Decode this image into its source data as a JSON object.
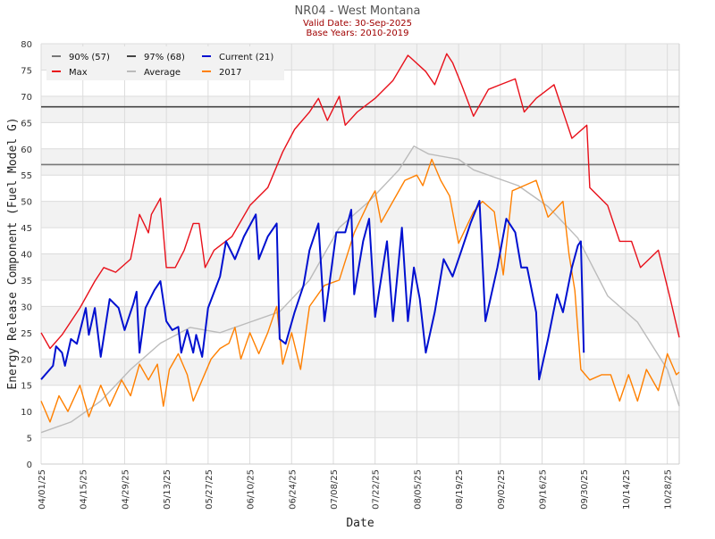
{
  "chart_data": {
    "type": "line",
    "title": "NR04 - West Montana",
    "subtitle_lines": [
      "Valid Date: 30-Sep-2025",
      "Base Years: 2010-2019"
    ],
    "xlabel": "Date",
    "ylabel": "Energy Release Component (Fuel Model G)",
    "x_unit": "days since 04/01/25",
    "xlim": [
      0,
      214
    ],
    "ylim": [
      0,
      80
    ],
    "yticks": [
      0,
      5,
      10,
      15,
      20,
      25,
      30,
      35,
      40,
      45,
      50,
      55,
      60,
      65,
      70,
      75,
      80
    ],
    "xticks": [
      {
        "day": 0,
        "label": "04/01/25"
      },
      {
        "day": 14,
        "label": "04/15/25"
      },
      {
        "day": 28,
        "label": "04/29/25"
      },
      {
        "day": 42,
        "label": "05/13/25"
      },
      {
        "day": 56,
        "label": "05/27/25"
      },
      {
        "day": 70,
        "label": "06/10/25"
      },
      {
        "day": 84,
        "label": "06/24/25"
      },
      {
        "day": 98,
        "label": "07/08/25"
      },
      {
        "day": 112,
        "label": "07/22/25"
      },
      {
        "day": 126,
        "label": "08/05/25"
      },
      {
        "day": 140,
        "label": "08/19/25"
      },
      {
        "day": 154,
        "label": "09/02/25"
      },
      {
        "day": 168,
        "label": "09/16/25"
      },
      {
        "day": 182,
        "label": "09/30/25"
      },
      {
        "day": 196,
        "label": "10/14/25"
      },
      {
        "day": 210,
        "label": "10/28/25"
      }
    ],
    "grid": true,
    "legend_position": "top-left",
    "reference_lines": [
      {
        "name": "90% (57)",
        "value": 57,
        "color": "#777777"
      },
      {
        "name": "97% (68)",
        "value": 68,
        "color": "#444444"
      }
    ],
    "series": [
      {
        "name": "Max",
        "color": "#e8101a",
        "points": [
          [
            0,
            25
          ],
          [
            3,
            22
          ],
          [
            7,
            24.6
          ],
          [
            13,
            29.7
          ],
          [
            18,
            34.8
          ],
          [
            21,
            37.4
          ],
          [
            25,
            36.5
          ],
          [
            30,
            39
          ],
          [
            33,
            47.5
          ],
          [
            36,
            44
          ],
          [
            37,
            47.5
          ],
          [
            40,
            50.6
          ],
          [
            42,
            37.4
          ],
          [
            45,
            37.4
          ],
          [
            48,
            40.7
          ],
          [
            51,
            45.8
          ],
          [
            53,
            45.8
          ],
          [
            55,
            37.4
          ],
          [
            58,
            40.7
          ],
          [
            64,
            43.3
          ],
          [
            70,
            49.2
          ],
          [
            76,
            52.6
          ],
          [
            81,
            59.4
          ],
          [
            85,
            63.7
          ],
          [
            90,
            67
          ],
          [
            93,
            69.6
          ],
          [
            96,
            65.4
          ],
          [
            100,
            70
          ],
          [
            102,
            64.5
          ],
          [
            106,
            67
          ],
          [
            112,
            69.6
          ],
          [
            118,
            73
          ],
          [
            123,
            77.8
          ],
          [
            124,
            77.3
          ],
          [
            129,
            74.7
          ],
          [
            132,
            72.2
          ],
          [
            136,
            78.1
          ],
          [
            138,
            76.4
          ],
          [
            141,
            72.2
          ],
          [
            145,
            66.2
          ],
          [
            150,
            71.3
          ],
          [
            154,
            72.2
          ],
          [
            159,
            73.3
          ],
          [
            162,
            67
          ],
          [
            166,
            69.6
          ],
          [
            172,
            72.2
          ],
          [
            178,
            62
          ],
          [
            183,
            64.5
          ],
          [
            184,
            52.6
          ],
          [
            190,
            49.2
          ],
          [
            194,
            42.4
          ],
          [
            198,
            42.4
          ],
          [
            201,
            37.4
          ],
          [
            207,
            40.7
          ],
          [
            211,
            31.4
          ],
          [
            214,
            24.1
          ]
        ]
      },
      {
        "name": "Average",
        "color": "#bbbbbb",
        "points": [
          [
            0,
            6
          ],
          [
            10,
            8
          ],
          [
            20,
            12
          ],
          [
            30,
            18
          ],
          [
            40,
            23
          ],
          [
            50,
            26
          ],
          [
            60,
            25
          ],
          [
            70,
            27
          ],
          [
            80,
            29
          ],
          [
            90,
            35
          ],
          [
            100,
            45
          ],
          [
            110,
            50
          ],
          [
            120,
            56
          ],
          [
            125,
            60.5
          ],
          [
            130,
            59
          ],
          [
            140,
            58
          ],
          [
            145,
            56
          ],
          [
            160,
            53
          ],
          [
            170,
            49
          ],
          [
            180,
            43
          ],
          [
            190,
            32
          ],
          [
            200,
            27
          ],
          [
            210,
            18
          ],
          [
            214,
            11
          ]
        ]
      },
      {
        "name": "2017",
        "color": "#ff8000",
        "points": [
          [
            0,
            12
          ],
          [
            3,
            8
          ],
          [
            6,
            13
          ],
          [
            9,
            10
          ],
          [
            13,
            15
          ],
          [
            16,
            9
          ],
          [
            20,
            15
          ],
          [
            23,
            11
          ],
          [
            27,
            16
          ],
          [
            30,
            13
          ],
          [
            33,
            19
          ],
          [
            36,
            16
          ],
          [
            39,
            19
          ],
          [
            41,
            11
          ],
          [
            43,
            18
          ],
          [
            46,
            21
          ],
          [
            49,
            17
          ],
          [
            51,
            12
          ],
          [
            54,
            16
          ],
          [
            57,
            20
          ],
          [
            60,
            22
          ],
          [
            63,
            23
          ],
          [
            65,
            26
          ],
          [
            67,
            20
          ],
          [
            70,
            25
          ],
          [
            73,
            21
          ],
          [
            76,
            25
          ],
          [
            79,
            30
          ],
          [
            81,
            19
          ],
          [
            84,
            25
          ],
          [
            87,
            18
          ],
          [
            90,
            30
          ],
          [
            95,
            34
          ],
          [
            100,
            35
          ],
          [
            105,
            44
          ],
          [
            110,
            50
          ],
          [
            112,
            52
          ],
          [
            114,
            46
          ],
          [
            118,
            50
          ],
          [
            122,
            54
          ],
          [
            126,
            55
          ],
          [
            128,
            53
          ],
          [
            131,
            58
          ],
          [
            134,
            54
          ],
          [
            137,
            51
          ],
          [
            140,
            42
          ],
          [
            145,
            48
          ],
          [
            148,
            50
          ],
          [
            152,
            48
          ],
          [
            155,
            36
          ],
          [
            158,
            52
          ],
          [
            162,
            53
          ],
          [
            166,
            54
          ],
          [
            170,
            47
          ],
          [
            175,
            50
          ],
          [
            177,
            40
          ],
          [
            179,
            33
          ],
          [
            181,
            18
          ],
          [
            184,
            16
          ],
          [
            188,
            17
          ],
          [
            191,
            17
          ],
          [
            194,
            12
          ],
          [
            197,
            17
          ],
          [
            200,
            12
          ],
          [
            203,
            18
          ],
          [
            207,
            14
          ],
          [
            210,
            21
          ],
          [
            213,
            17
          ],
          [
            214,
            17.5
          ]
        ]
      },
      {
        "name": "Current (21)",
        "color": "#0010d0",
        "points": [
          [
            0,
            16.1
          ],
          [
            4,
            18.7
          ],
          [
            5,
            22.4
          ],
          [
            7,
            21.2
          ],
          [
            8,
            18.7
          ],
          [
            10,
            23.8
          ],
          [
            12,
            22.9
          ],
          [
            15,
            29.7
          ],
          [
            16,
            24.6
          ],
          [
            18,
            29.7
          ],
          [
            20,
            20.4
          ],
          [
            23,
            31.4
          ],
          [
            26,
            29.7
          ],
          [
            28,
            25.5
          ],
          [
            31,
            30.6
          ],
          [
            32,
            32.8
          ],
          [
            33,
            21.2
          ],
          [
            35,
            29.7
          ],
          [
            38,
            33.1
          ],
          [
            40,
            34.8
          ],
          [
            42,
            27.2
          ],
          [
            44,
            25.5
          ],
          [
            46,
            26.1
          ],
          [
            47,
            21.2
          ],
          [
            49,
            25.5
          ],
          [
            51,
            21.2
          ],
          [
            52,
            24.6
          ],
          [
            54,
            20.4
          ],
          [
            56,
            29.7
          ],
          [
            60,
            35.7
          ],
          [
            62,
            42.4
          ],
          [
            65,
            39
          ],
          [
            68,
            43.3
          ],
          [
            72,
            47.5
          ],
          [
            73,
            39
          ],
          [
            76,
            43.3
          ],
          [
            79,
            45.8
          ],
          [
            80,
            23.8
          ],
          [
            82,
            22.9
          ],
          [
            85,
            28.9
          ],
          [
            88,
            34
          ],
          [
            90,
            40.7
          ],
          [
            93,
            45.8
          ],
          [
            95,
            27.2
          ],
          [
            99,
            44.1
          ],
          [
            102,
            44.1
          ],
          [
            104,
            48.4
          ],
          [
            105,
            32.3
          ],
          [
            108,
            42.4
          ],
          [
            110,
            46.7
          ],
          [
            112,
            28
          ],
          [
            116,
            42.4
          ],
          [
            118,
            27.2
          ],
          [
            121,
            45
          ],
          [
            123,
            27.2
          ],
          [
            125,
            37.4
          ],
          [
            127,
            31.4
          ],
          [
            129,
            21.2
          ],
          [
            132,
            28.9
          ],
          [
            135,
            39
          ],
          [
            138,
            35.7
          ],
          [
            141,
            40.7
          ],
          [
            144,
            45.8
          ],
          [
            147,
            50.1
          ],
          [
            149,
            27.2
          ],
          [
            153,
            37.4
          ],
          [
            156,
            46.7
          ],
          [
            159,
            44.1
          ],
          [
            161,
            37.4
          ],
          [
            163,
            37.4
          ],
          [
            166,
            28.9
          ],
          [
            167,
            16.1
          ],
          [
            170,
            23.8
          ],
          [
            173,
            32.3
          ],
          [
            175,
            28.9
          ],
          [
            178,
            37.4
          ],
          [
            180,
            41.6
          ],
          [
            181,
            42.4
          ],
          [
            182,
            21.2
          ]
        ]
      }
    ],
    "legend": [
      "90% (57)",
      "97% (68)",
      "Current (21)",
      "Max",
      "Average",
      "2017"
    ]
  }
}
